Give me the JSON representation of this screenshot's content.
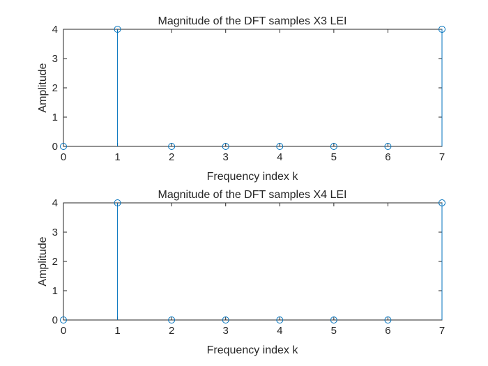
{
  "chart_data": [
    {
      "type": "stem",
      "title": "Magnitude of the DFT samples X3 LEI",
      "xlabel": "Frequency index k",
      "ylabel": "Amplitude",
      "x": [
        0,
        1,
        2,
        3,
        4,
        5,
        6,
        7
      ],
      "values": [
        0,
        4,
        0,
        0,
        0,
        0,
        0,
        4
      ],
      "xlim": [
        0,
        7
      ],
      "ylim": [
        0,
        4
      ],
      "xticks": [
        "0",
        "1",
        "2",
        "3",
        "4",
        "5",
        "6",
        "7"
      ],
      "yticks": [
        "0",
        "1",
        "2",
        "3",
        "4"
      ],
      "grid": false,
      "color": "#0072bd"
    },
    {
      "type": "stem",
      "title": "Magnitude of the DFT samples X4 LEI",
      "xlabel": "Frequency index k",
      "ylabel": "Amplitude",
      "x": [
        0,
        1,
        2,
        3,
        4,
        5,
        6,
        7
      ],
      "values": [
        0,
        4,
        0,
        0,
        0,
        0,
        0,
        4
      ],
      "xlim": [
        0,
        7
      ],
      "ylim": [
        0,
        4
      ],
      "xticks": [
        "0",
        "1",
        "2",
        "3",
        "4",
        "5",
        "6",
        "7"
      ],
      "yticks": [
        "0",
        "1",
        "2",
        "3",
        "4"
      ],
      "grid": false,
      "color": "#0072bd"
    }
  ]
}
